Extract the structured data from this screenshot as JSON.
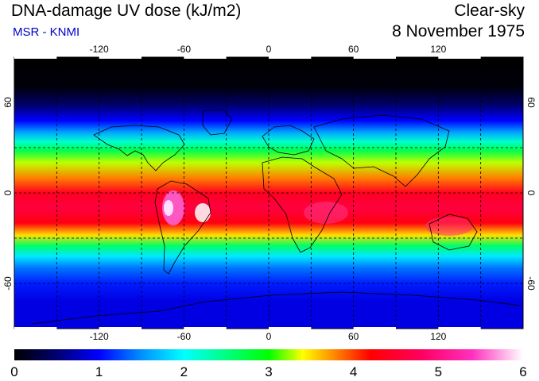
{
  "header": {
    "title": "DNA-damage UV dose (kJ/m2)",
    "subtitle": "MSR - KNMI",
    "sky_condition": "Clear-sky",
    "date": "8 November 1975"
  },
  "map": {
    "lon_ticks": [
      -120,
      -60,
      0,
      60,
      120
    ],
    "lon_labels": [
      "-120",
      "-60",
      "0",
      "60",
      "120"
    ],
    "lat_ticks": [
      60,
      0,
      -60
    ],
    "lat_labels": [
      "60",
      "0",
      "-60"
    ],
    "lon_range": [
      -180,
      180
    ],
    "lat_range": [
      -90,
      90
    ],
    "grid_spacing_deg": 30,
    "colors": {
      "frame": "#000000",
      "grid": "#000000",
      "coast": "#000000"
    },
    "dose_profile_kJ_m2": [
      {
        "lat": 90,
        "dose": 0.0
      },
      {
        "lat": 70,
        "dose": 0.05
      },
      {
        "lat": 58,
        "dose": 0.5
      },
      {
        "lat": 48,
        "dose": 1.0
      },
      {
        "lat": 40,
        "dose": 1.6
      },
      {
        "lat": 34,
        "dose": 2.2
      },
      {
        "lat": 28,
        "dose": 2.7
      },
      {
        "lat": 20,
        "dose": 3.3
      },
      {
        "lat": 10,
        "dose": 3.8
      },
      {
        "lat": 0,
        "dose": 4.4
      },
      {
        "lat": -10,
        "dose": 4.6
      },
      {
        "lat": -20,
        "dose": 4.3
      },
      {
        "lat": -28,
        "dose": 3.5
      },
      {
        "lat": -35,
        "dose": 2.6
      },
      {
        "lat": -42,
        "dose": 1.9
      },
      {
        "lat": -50,
        "dose": 1.4
      },
      {
        "lat": -60,
        "dose": 1.1
      },
      {
        "lat": -72,
        "dose": 0.9
      },
      {
        "lat": -90,
        "dose": 0.9
      }
    ]
  },
  "colorbar": {
    "min": 0,
    "max": 6,
    "tick_labels": [
      "0",
      "1",
      "2",
      "3",
      "4",
      "5",
      "6"
    ],
    "colormap": [
      {
        "v": 0.0,
        "c": "#000000"
      },
      {
        "v": 0.5,
        "c": "#000070"
      },
      {
        "v": 1.0,
        "c": "#0000ff"
      },
      {
        "v": 1.5,
        "c": "#0090ff"
      },
      {
        "v": 2.0,
        "c": "#00ffff"
      },
      {
        "v": 2.5,
        "c": "#00ff80"
      },
      {
        "v": 3.0,
        "c": "#00ff00"
      },
      {
        "v": 3.4,
        "c": "#ffff00"
      },
      {
        "v": 3.8,
        "c": "#ff8000"
      },
      {
        "v": 4.2,
        "c": "#ff0000"
      },
      {
        "v": 4.8,
        "c": "#ff0060"
      },
      {
        "v": 5.4,
        "c": "#ff30c0"
      },
      {
        "v": 6.0,
        "c": "#ffffff"
      }
    ]
  }
}
